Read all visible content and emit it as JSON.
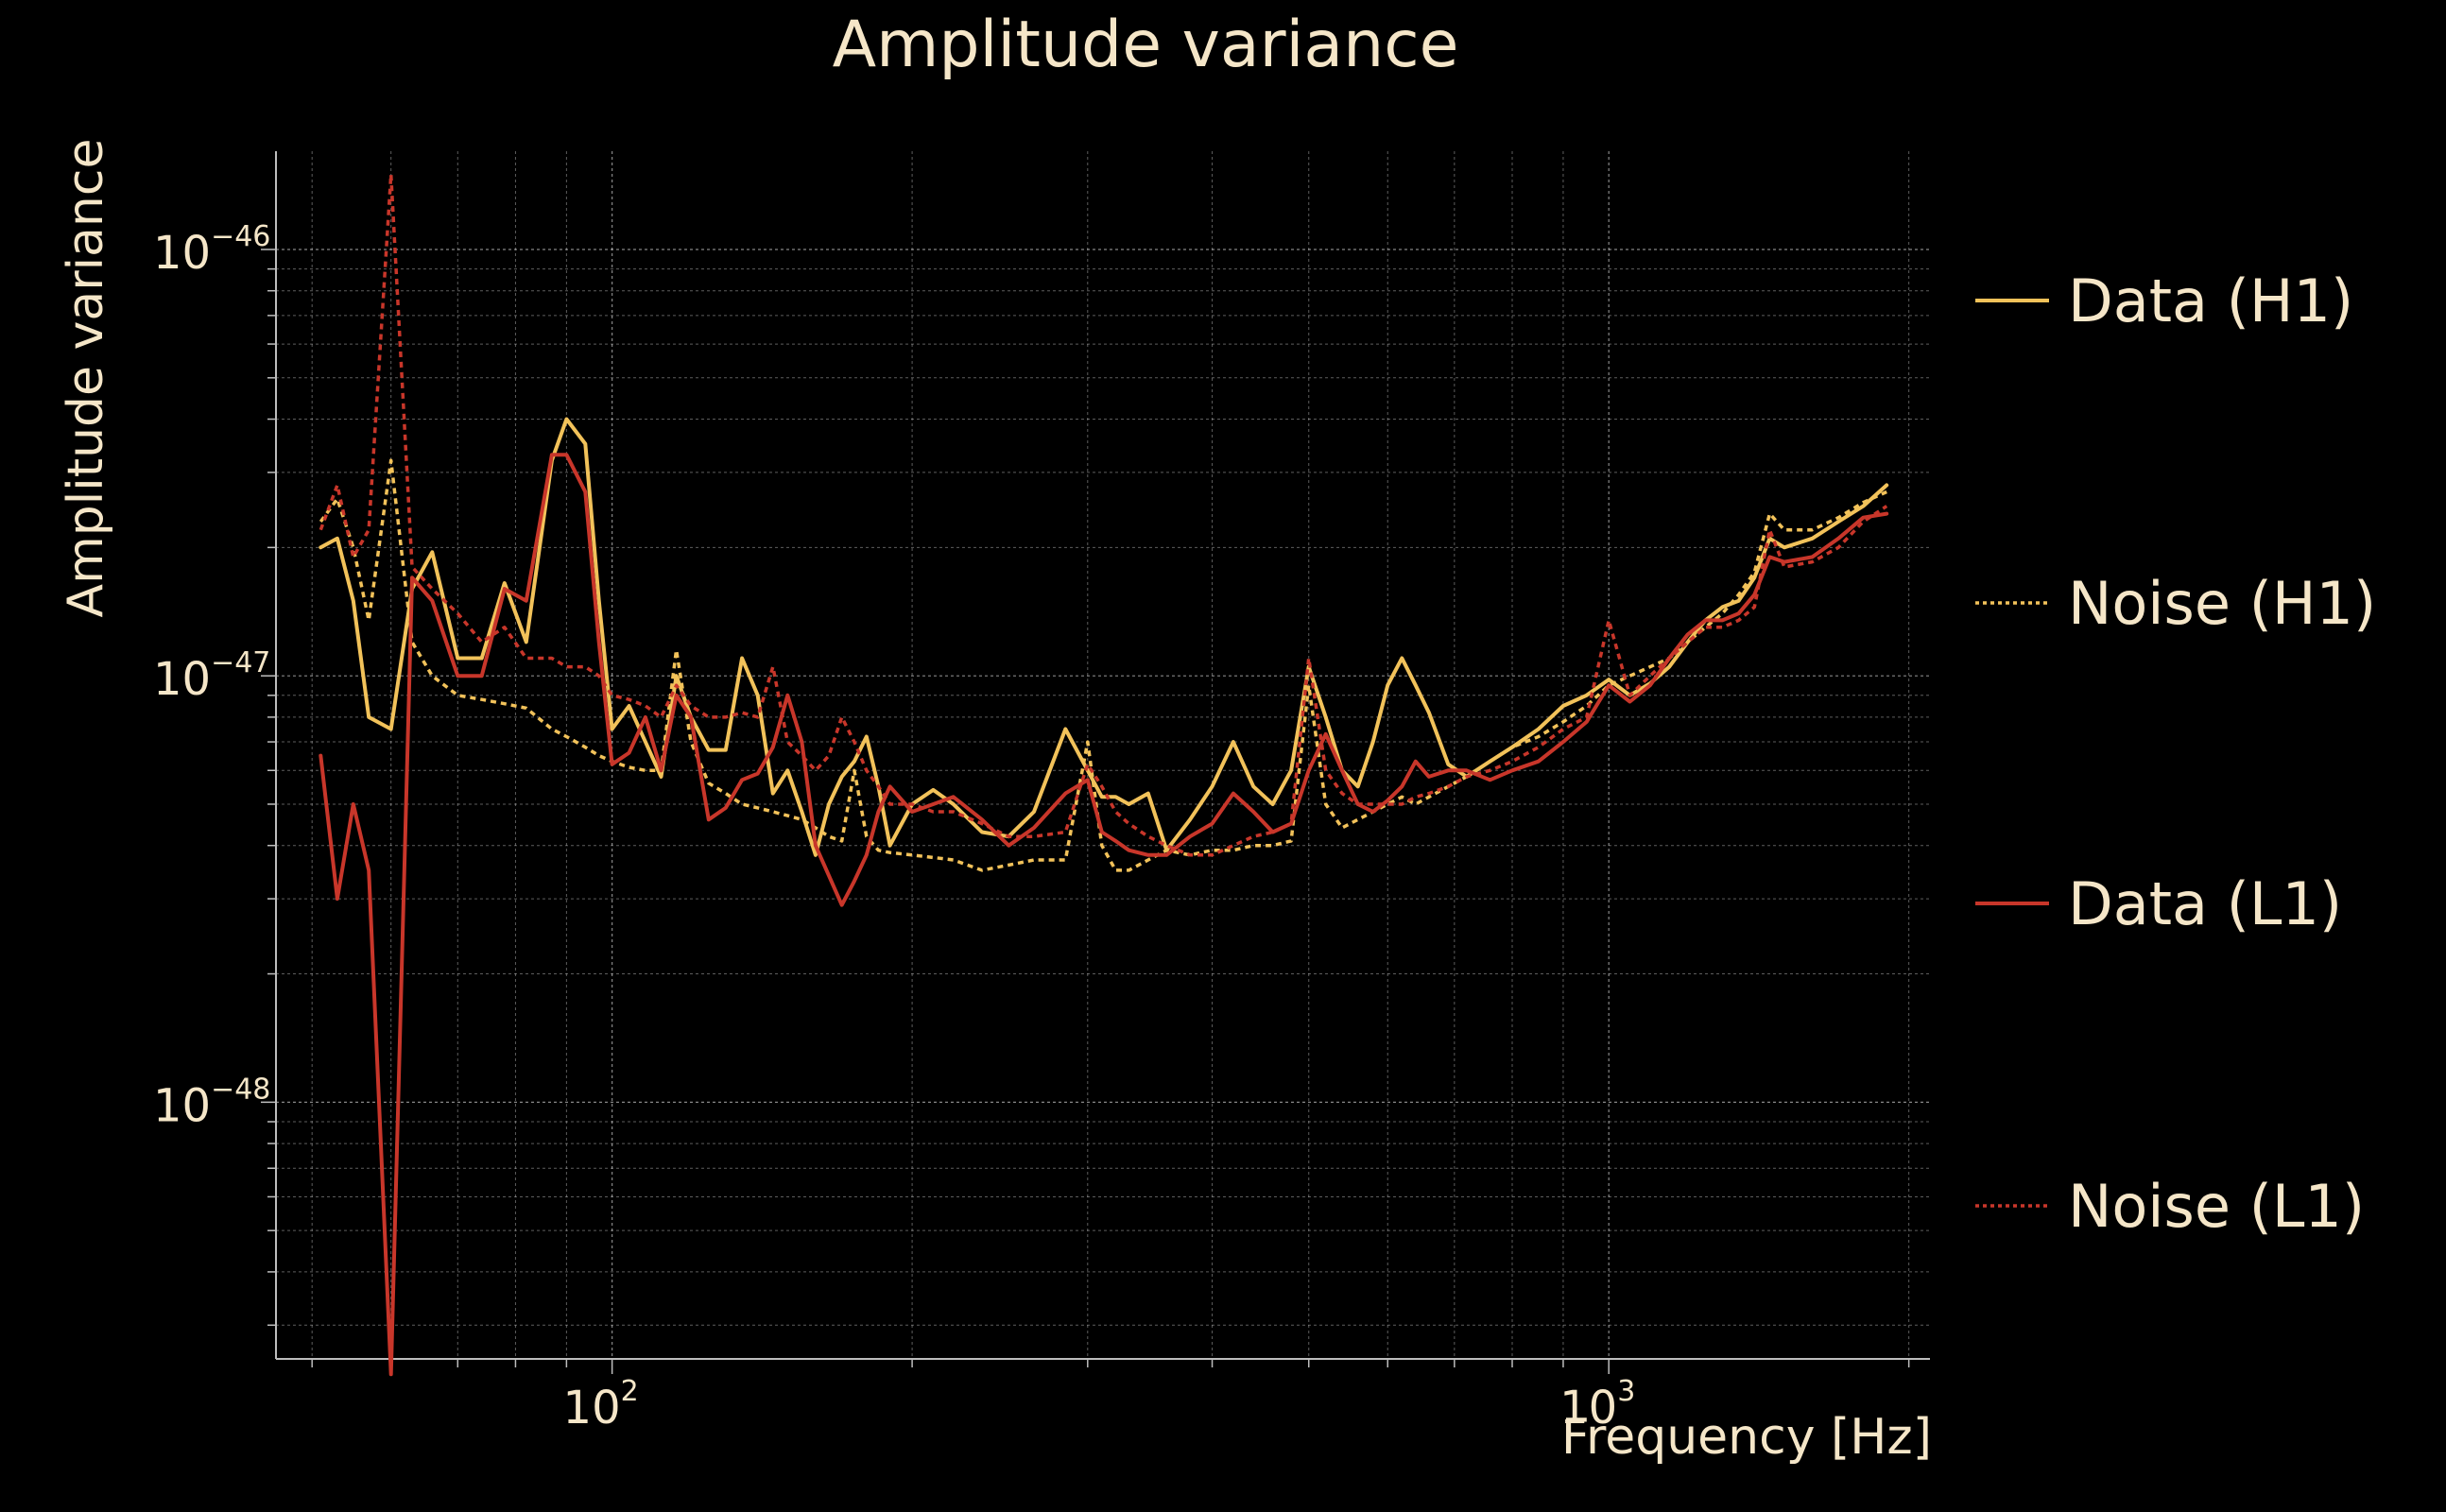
{
  "colors": {
    "background": "#000000",
    "text": "#f5e6c8",
    "grid": "#cfcfcf",
    "axis": "#bdbdbd",
    "h1": "#f2c25a",
    "l1": "#c8362a"
  },
  "chart_data": {
    "type": "line",
    "title": "Amplitude variance",
    "xlabel": "Frequency [Hz]",
    "ylabel": "Amplitude variance",
    "xscale": "log",
    "yscale": "log",
    "xlim": [
      46,
      2100
    ],
    "ylim": [
      2.5e-49,
      1.7e-46
    ],
    "grid": true,
    "legend_position": "right",
    "x_ticks": [
      {
        "base": "10",
        "exp": "2",
        "value": 100
      },
      {
        "base": "10",
        "exp": "3",
        "value": 1000
      }
    ],
    "y_ticks": [
      {
        "base": "10",
        "exp": "−46",
        "value": 1e-46
      },
      {
        "base": "10",
        "exp": "−47",
        "value": 1e-47
      },
      {
        "base": "10",
        "exp": "−48",
        "value": 1e-48
      }
    ],
    "series": [
      {
        "name": "Data (H1)",
        "color": "#f2c25a",
        "dash": "solid",
        "x": [
          51,
          53,
          55,
          57,
          60,
          63,
          66,
          70,
          74,
          78,
          82,
          87,
          90,
          94,
          97,
          100,
          104,
          108,
          112,
          116,
          120,
          125,
          130,
          135,
          140,
          145,
          150,
          155,
          160,
          165,
          170,
          175,
          180,
          185,
          190,
          200,
          210,
          220,
          235,
          250,
          265,
          285,
          300,
          310,
          320,
          330,
          345,
          360,
          380,
          400,
          420,
          440,
          460,
          480,
          500,
          520,
          540,
          560,
          580,
          600,
          620,
          640,
          660,
          690,
          720,
          760,
          800,
          850,
          900,
          950,
          1000,
          1050,
          1100,
          1150,
          1200,
          1250,
          1300,
          1350,
          1400,
          1450,
          1500,
          1600,
          1700,
          1800,
          1900
        ],
        "y": [
          2e-47,
          2.1e-47,
          1.5e-47,
          8e-48,
          7.5e-48,
          1.6e-47,
          1.95e-47,
          1.1e-47,
          1.1e-47,
          1.65e-47,
          1.2e-47,
          3.2e-47,
          4e-47,
          3.5e-47,
          1.5e-47,
          7.5e-48,
          8.5e-48,
          7e-48,
          5.8e-48,
          1e-47,
          8e-48,
          6.7e-48,
          6.7e-48,
          1.1e-47,
          9e-48,
          5.3e-48,
          6e-48,
          4.8e-48,
          3.8e-48,
          5e-48,
          5.8e-48,
          6.3e-48,
          7.2e-48,
          5.5e-48,
          4e-48,
          5e-48,
          5.4e-48,
          5e-48,
          4.3e-48,
          4.2e-48,
          4.8e-48,
          7.5e-48,
          6e-48,
          5.2e-48,
          5.2e-48,
          5e-48,
          5.3e-48,
          3.9e-48,
          4.6e-48,
          5.5e-48,
          7e-48,
          5.5e-48,
          5e-48,
          6e-48,
          1.05e-47,
          8e-48,
          6e-48,
          5.5e-48,
          7e-48,
          9.5e-48,
          1.1e-47,
          9.5e-48,
          8.2e-48,
          6.2e-48,
          5.8e-48,
          6.3e-48,
          6.8e-48,
          7.5e-48,
          8.5e-48,
          9e-48,
          9.8e-48,
          9e-48,
          9.6e-48,
          1.05e-47,
          1.2e-47,
          1.35e-47,
          1.45e-47,
          1.5e-47,
          1.7e-47,
          2.1e-47,
          2e-47,
          2.1e-47,
          2.3e-47,
          2.5e-47,
          2.8e-47
        ]
      },
      {
        "name": "Noise (H1)",
        "color": "#f2c25a",
        "dash": "dotted",
        "x": [
          51,
          53,
          55,
          57,
          60,
          63,
          66,
          70,
          74,
          78,
          82,
          87,
          90,
          94,
          97,
          100,
          104,
          108,
          112,
          116,
          120,
          125,
          130,
          135,
          140,
          145,
          150,
          155,
          160,
          165,
          170,
          175,
          180,
          185,
          190,
          200,
          210,
          220,
          235,
          250,
          265,
          285,
          300,
          310,
          320,
          330,
          345,
          360,
          380,
          400,
          420,
          440,
          460,
          480,
          500,
          520,
          540,
          560,
          580,
          600,
          620,
          640,
          660,
          690,
          720,
          760,
          800,
          850,
          900,
          950,
          1000,
          1050,
          1100,
          1150,
          1200,
          1250,
          1300,
          1350,
          1400,
          1450,
          1500,
          1600,
          1700,
          1800,
          1900
        ],
        "y": [
          2.3e-47,
          2.6e-47,
          2e-47,
          1.35e-47,
          3.2e-47,
          1.2e-47,
          1e-47,
          9e-48,
          8.8e-48,
          8.6e-48,
          8.4e-48,
          7.5e-48,
          7.2e-48,
          6.8e-48,
          6.5e-48,
          6.3e-48,
          6.1e-48,
          6e-48,
          6e-48,
          1.15e-47,
          7e-48,
          5.6e-48,
          5.3e-48,
          5e-48,
          4.9e-48,
          4.8e-48,
          4.7e-48,
          4.6e-48,
          4.4e-48,
          4.2e-48,
          4.1e-48,
          6e-48,
          4.2e-48,
          3.9e-48,
          3.85e-48,
          3.8e-48,
          3.75e-48,
          3.7e-48,
          3.5e-48,
          3.6e-48,
          3.7e-48,
          3.7e-48,
          7e-48,
          4e-48,
          3.5e-48,
          3.5e-48,
          3.7e-48,
          3.9e-48,
          3.8e-48,
          3.9e-48,
          3.9e-48,
          4e-48,
          4e-48,
          4.1e-48,
          9.5e-48,
          5e-48,
          4.4e-48,
          4.6e-48,
          4.8e-48,
          5e-48,
          5.2e-48,
          5e-48,
          5.2e-48,
          5.5e-48,
          5.8e-48,
          6.3e-48,
          6.8e-48,
          7.2e-48,
          7.8e-48,
          8.5e-48,
          9.5e-48,
          1e-47,
          1.05e-47,
          1.1e-47,
          1.2e-47,
          1.3e-47,
          1.4e-47,
          1.55e-47,
          1.75e-47,
          2.4e-47,
          2.2e-47,
          2.2e-47,
          2.35e-47,
          2.55e-47,
          2.7e-47
        ]
      },
      {
        "name": "Data (L1)",
        "color": "#c8362a",
        "dash": "solid",
        "x": [
          51,
          53,
          55,
          57,
          60,
          63,
          66,
          70,
          74,
          78,
          82,
          87,
          90,
          94,
          97,
          100,
          104,
          108,
          112,
          116,
          120,
          125,
          130,
          135,
          140,
          145,
          150,
          155,
          160,
          165,
          170,
          175,
          180,
          185,
          190,
          200,
          210,
          220,
          235,
          250,
          265,
          285,
          300,
          310,
          320,
          330,
          345,
          360,
          380,
          400,
          420,
          440,
          460,
          480,
          500,
          520,
          540,
          560,
          580,
          600,
          620,
          640,
          660,
          690,
          720,
          760,
          800,
          850,
          900,
          950,
          1000,
          1050,
          1100,
          1150,
          1200,
          1250,
          1300,
          1350,
          1400,
          1450,
          1500,
          1600,
          1700,
          1800,
          1900
        ],
        "y": [
          6.5e-48,
          3e-48,
          5e-48,
          3.5e-48,
          2.3e-49,
          1.7e-47,
          1.5e-47,
          1e-47,
          1e-47,
          1.6e-47,
          1.5e-47,
          3.3e-47,
          3.3e-47,
          2.7e-47,
          1.2e-47,
          6.2e-48,
          6.6e-48,
          8e-48,
          6e-48,
          9e-48,
          8e-48,
          4.6e-48,
          4.9e-48,
          5.7e-48,
          5.9e-48,
          6.8e-48,
          9e-48,
          7e-48,
          4e-48,
          3.4e-48,
          2.9e-48,
          3.3e-48,
          3.8e-48,
          4.8e-48,
          5.5e-48,
          4.8e-48,
          5e-48,
          5.2e-48,
          4.6e-48,
          4e-48,
          4.4e-48,
          5.3e-48,
          5.7e-48,
          4.3e-48,
          4.1e-48,
          3.9e-48,
          3.8e-48,
          3.8e-48,
          4.2e-48,
          4.5e-48,
          5.3e-48,
          4.8e-48,
          4.3e-48,
          4.5e-48,
          6e-48,
          7.3e-48,
          6e-48,
          5e-48,
          4.8e-48,
          5.1e-48,
          5.5e-48,
          6.3e-48,
          5.8e-48,
          6e-48,
          6e-48,
          5.7e-48,
          6e-48,
          6.3e-48,
          7e-48,
          7.8e-48,
          9.5e-48,
          8.7e-48,
          9.5e-48,
          1.1e-47,
          1.25e-47,
          1.35e-47,
          1.35e-47,
          1.4e-47,
          1.55e-47,
          1.9e-47,
          1.85e-47,
          1.9e-47,
          2.1e-47,
          2.35e-47,
          2.4e-47
        ]
      },
      {
        "name": "Noise (L1)",
        "color": "#c8362a",
        "dash": "dotted",
        "x": [
          51,
          53,
          55,
          57,
          60,
          63,
          66,
          70,
          74,
          78,
          82,
          87,
          90,
          94,
          97,
          100,
          104,
          108,
          112,
          116,
          120,
          125,
          130,
          135,
          140,
          145,
          150,
          155,
          160,
          165,
          170,
          175,
          180,
          185,
          190,
          200,
          210,
          220,
          235,
          250,
          265,
          285,
          300,
          310,
          320,
          330,
          345,
          360,
          380,
          400,
          420,
          440,
          460,
          480,
          500,
          520,
          540,
          560,
          580,
          600,
          620,
          640,
          660,
          690,
          720,
          760,
          800,
          850,
          900,
          950,
          1000,
          1050,
          1100,
          1150,
          1200,
          1250,
          1300,
          1350,
          1400,
          1450,
          1500,
          1600,
          1700,
          1800,
          1900
        ],
        "y": [
          2.2e-47,
          2.8e-47,
          1.9e-47,
          2.2e-47,
          1.5e-46,
          1.8e-47,
          1.6e-47,
          1.4e-47,
          1.2e-47,
          1.3e-47,
          1.1e-47,
          1.1e-47,
          1.05e-47,
          1.05e-47,
          1e-47,
          9e-48,
          8.8e-48,
          8.5e-48,
          8e-48,
          9.5e-48,
          8.5e-48,
          8e-48,
          8e-48,
          8.2e-48,
          8e-48,
          1.05e-47,
          7e-48,
          6.5e-48,
          6e-48,
          6.5e-48,
          8e-48,
          7e-48,
          6e-48,
          5.5e-48,
          5e-48,
          5e-48,
          4.8e-48,
          4.8e-48,
          4.5e-48,
          4.2e-48,
          4.2e-48,
          4.3e-48,
          6.2e-48,
          5.5e-48,
          4.8e-48,
          4.5e-48,
          4.2e-48,
          4e-48,
          3.8e-48,
          3.8e-48,
          4e-48,
          4.2e-48,
          4.3e-48,
          4.5e-48,
          1.1e-47,
          6e-48,
          5.3e-48,
          5e-48,
          5e-48,
          5e-48,
          5e-48,
          5.2e-48,
          5.3e-48,
          5.5e-48,
          5.8e-48,
          6e-48,
          6.3e-48,
          6.8e-48,
          7.5e-48,
          8e-48,
          1.35e-47,
          9e-48,
          1e-47,
          1.1e-47,
          1.2e-47,
          1.3e-47,
          1.3e-47,
          1.35e-47,
          1.45e-47,
          2.2e-47,
          1.8e-47,
          1.85e-47,
          2e-47,
          2.3e-47,
          2.5e-47
        ]
      }
    ]
  }
}
